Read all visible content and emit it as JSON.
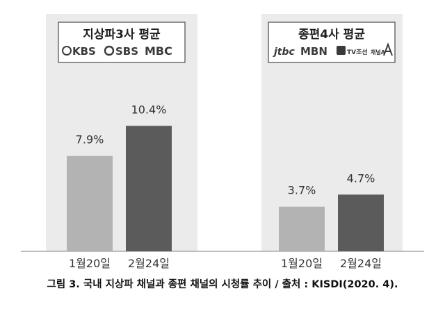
{
  "chart_data": [
    {
      "type": "bar",
      "title": "지상파3사 평균",
      "logos": [
        "KBS",
        "SBS",
        "MBC"
      ],
      "categories": [
        "1월20일",
        "2월24일"
      ],
      "values": [
        7.9,
        10.4
      ],
      "value_labels": [
        "7.9%",
        "10.4%"
      ],
      "colors": [
        "#b3b3b3",
        "#5b5b5b"
      ],
      "ylim": [
        0,
        14.5
      ],
      "xlabel": "",
      "ylabel": "",
      "grid": false,
      "legend": "none"
    },
    {
      "type": "bar",
      "title": "종편4사 평균",
      "logos": [
        "jtbc",
        "MBN",
        "TV조선",
        "채널A"
      ],
      "categories": [
        "1월20일",
        "2월24일"
      ],
      "values": [
        3.7,
        4.7
      ],
      "value_labels": [
        "3.7%",
        "4.7%"
      ],
      "colors": [
        "#b3b3b3",
        "#5b5b5b"
      ],
      "ylim": [
        0,
        14.5
      ],
      "xlabel": "",
      "ylabel": "",
      "grid": false,
      "legend": "none"
    }
  ],
  "caption": "그림 3. 국내 지상파 채널과 종편 채널의 시청률 추이 / 출처 : KISDI(2020. 4)."
}
